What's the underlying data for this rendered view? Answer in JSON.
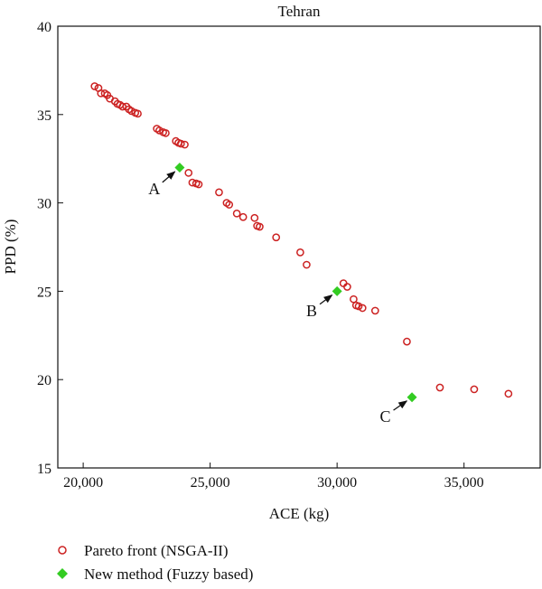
{
  "chart_data": {
    "type": "scatter",
    "title": "Tehran",
    "xlabel": "ACE (kg)",
    "ylabel": "PPD (%)",
    "xlim": [
      19000,
      38000
    ],
    "ylim": [
      15,
      40
    ],
    "xticks": [
      20000,
      25000,
      30000,
      35000
    ],
    "xtick_labels": [
      "20,000",
      "25,000",
      "30,000",
      "35,000"
    ],
    "yticks": [
      15,
      20,
      25,
      30,
      35,
      40
    ],
    "ytick_labels": [
      "15",
      "20",
      "25",
      "30",
      "35",
      "40"
    ],
    "grid": false,
    "legend_position": "bottom",
    "series": [
      {
        "name": "Pareto front (NSGA-II)",
        "marker": "open-circle",
        "color": "#cc2222",
        "points": [
          [
            20450,
            36.6
          ],
          [
            20600,
            36.5
          ],
          [
            20700,
            36.2
          ],
          [
            20850,
            36.2
          ],
          [
            20950,
            36.1
          ],
          [
            21050,
            35.9
          ],
          [
            21250,
            35.75
          ],
          [
            21350,
            35.6
          ],
          [
            21450,
            35.55
          ],
          [
            21550,
            35.45
          ],
          [
            21700,
            35.45
          ],
          [
            21800,
            35.3
          ],
          [
            21900,
            35.2
          ],
          [
            22050,
            35.1
          ],
          [
            22150,
            35.05
          ],
          [
            22900,
            34.2
          ],
          [
            23000,
            34.1
          ],
          [
            23150,
            34.0
          ],
          [
            23250,
            33.95
          ],
          [
            23650,
            33.5
          ],
          [
            23750,
            33.4
          ],
          [
            23850,
            33.35
          ],
          [
            24000,
            33.3
          ],
          [
            24150,
            31.7
          ],
          [
            24300,
            31.15
          ],
          [
            24450,
            31.1
          ],
          [
            24550,
            31.05
          ],
          [
            25350,
            30.6
          ],
          [
            25650,
            30.0
          ],
          [
            25750,
            29.9
          ],
          [
            26050,
            29.4
          ],
          [
            26300,
            29.2
          ],
          [
            26750,
            29.15
          ],
          [
            26850,
            28.7
          ],
          [
            26950,
            28.65
          ],
          [
            27600,
            28.05
          ],
          [
            28550,
            27.2
          ],
          [
            28800,
            26.5
          ],
          [
            30250,
            25.45
          ],
          [
            30400,
            25.25
          ],
          [
            30650,
            24.55
          ],
          [
            30750,
            24.2
          ],
          [
            30850,
            24.15
          ],
          [
            31000,
            24.05
          ],
          [
            31500,
            23.9
          ],
          [
            32750,
            22.15
          ],
          [
            34050,
            19.55
          ],
          [
            35400,
            19.45
          ],
          [
            36750,
            19.2
          ]
        ]
      },
      {
        "name": "New method (Fuzzy based)",
        "marker": "filled-diamond",
        "color": "#33cc22",
        "points": [
          [
            23800,
            32.0
          ],
          [
            30000,
            25.0
          ],
          [
            32950,
            19.0
          ]
        ]
      }
    ],
    "annotations": [
      {
        "text": "A",
        "target": [
          23800,
          32.0
        ],
        "text_at": [
          22800,
          30.5
        ]
      },
      {
        "text": "B",
        "target": [
          30000,
          25.0
        ],
        "text_at": [
          29000,
          23.6
        ]
      },
      {
        "text": "C",
        "target": [
          32950,
          19.0
        ],
        "text_at": [
          31900,
          17.6
        ]
      }
    ]
  }
}
